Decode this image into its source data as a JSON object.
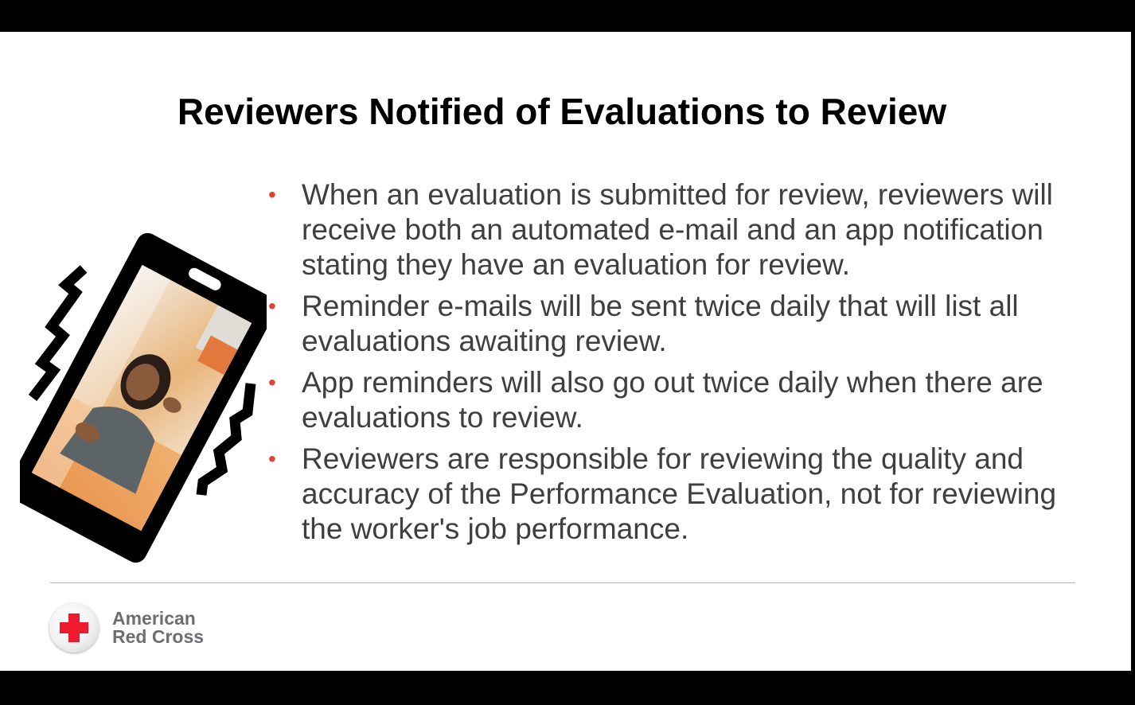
{
  "slide": {
    "title": "Reviewers Notified of Evaluations to Review",
    "bullets": [
      "When an evaluation is submitted for review, reviewers will receive both an automated e-mail and an app notification stating they have an evaluation for review.",
      "Reminder e-mails will be sent twice daily that will list all evaluations awaiting review.",
      "App reminders will also go out twice daily when there are evaluations to review.",
      "Reviewers are responsible for reviewing the quality and accuracy of the Performance Evaluation, not for reviewing the worker's job performance."
    ],
    "bullet_glyph": "•",
    "logo": {
      "line1": "American",
      "line2": "Red Cross"
    }
  },
  "colors": {
    "bullet": "#d9473b",
    "body_text": "#3f3f3f",
    "logo_text": "#6d6e71",
    "cross_red": "#ed1b2e"
  },
  "icons": {
    "phone": "vibrating-phone-icon",
    "cross": "red-cross-icon"
  }
}
